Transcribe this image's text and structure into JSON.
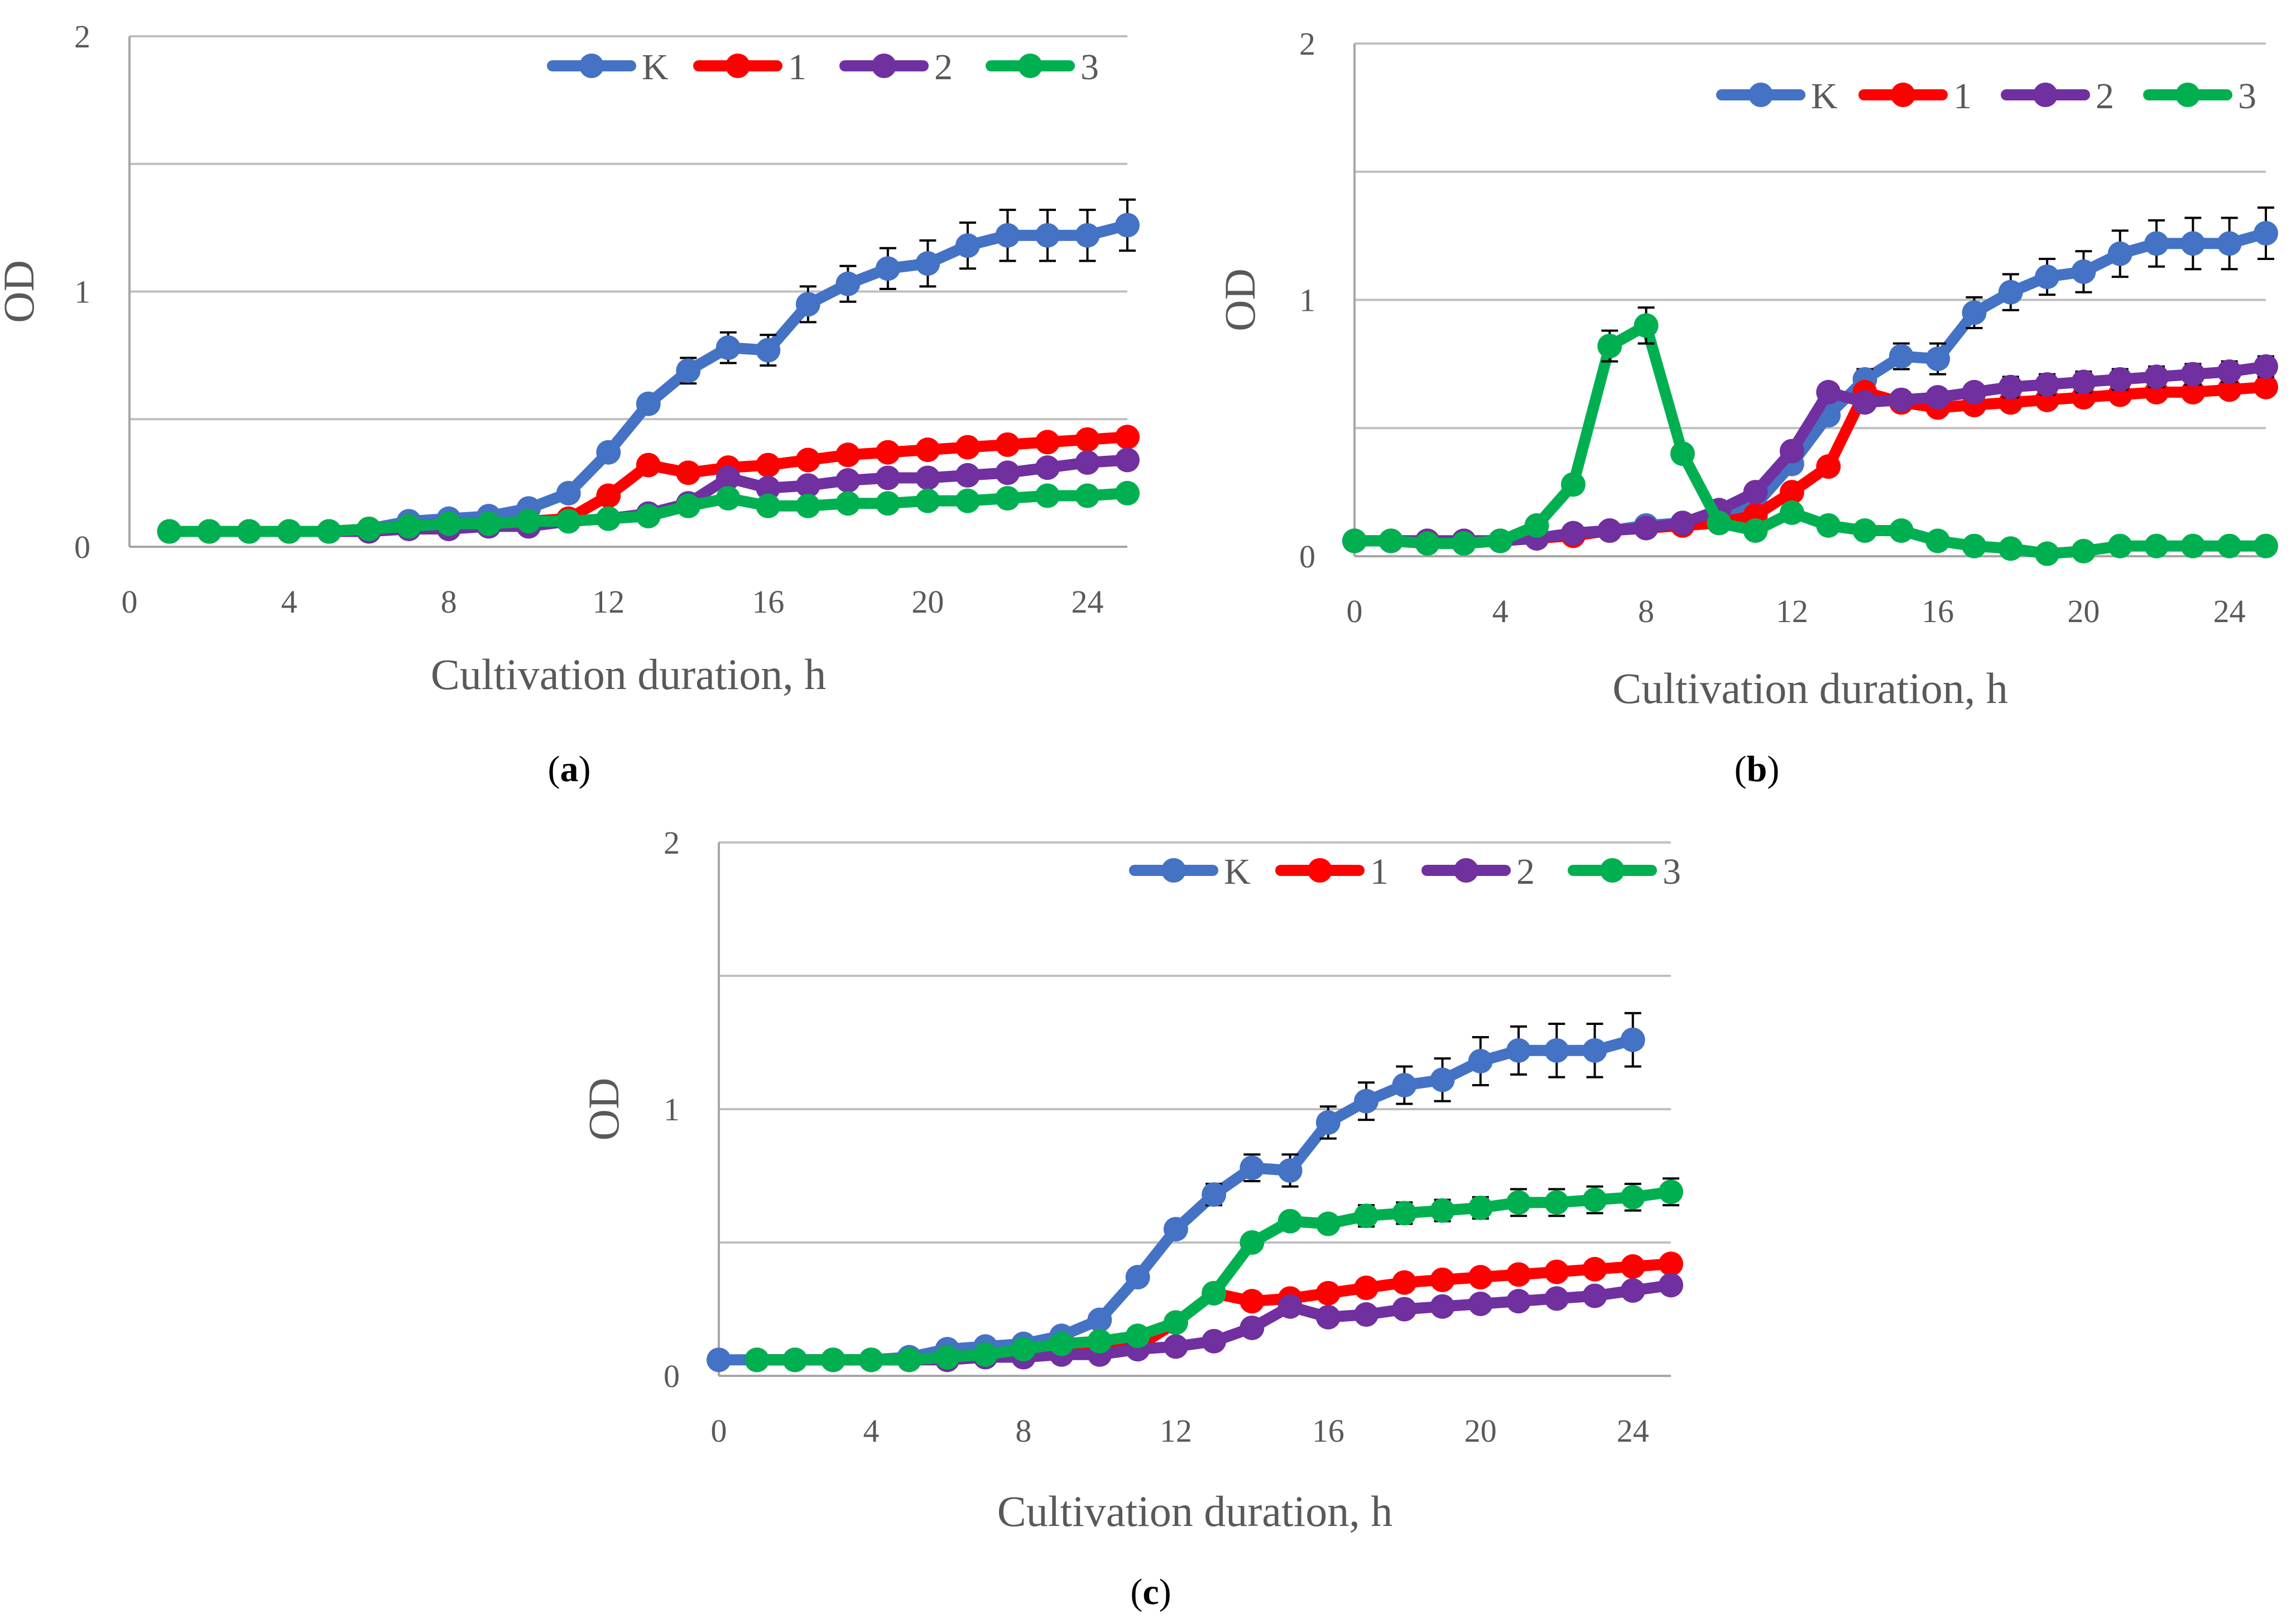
{
  "chart_data": [
    {
      "type": "line",
      "panel_label": "a",
      "xlabel": "Cultivation duration, h",
      "ylabel": "OD",
      "xlim": [
        0,
        25
      ],
      "ylim": [
        0,
        2
      ],
      "xticks": [
        0,
        4,
        8,
        12,
        16,
        20,
        24
      ],
      "yticks": [
        0,
        1,
        2
      ],
      "grid": true,
      "legend_position": "top-right",
      "x": [
        1,
        2,
        3,
        4,
        5,
        6,
        7,
        8,
        9,
        10,
        11,
        12,
        13,
        14,
        15,
        16,
        17,
        18,
        19,
        20,
        21,
        22,
        23,
        24,
        25
      ],
      "series": [
        {
          "name": "K",
          "color": "#4472c4",
          "values": [
            0.06,
            0.06,
            0.06,
            0.06,
            0.06,
            0.07,
            0.1,
            0.11,
            0.12,
            0.15,
            0.21,
            0.37,
            0.56,
            0.69,
            0.78,
            0.77,
            0.95,
            1.03,
            1.09,
            1.11,
            1.18,
            1.22,
            1.22,
            1.22,
            1.26
          ],
          "error": [
            0,
            0,
            0,
            0,
            0,
            0,
            0,
            0,
            0,
            0,
            0,
            0,
            0.03,
            0.05,
            0.06,
            0.06,
            0.07,
            0.07,
            0.08,
            0.09,
            0.09,
            0.1,
            0.1,
            0.1,
            0.1
          ]
        },
        {
          "name": "1",
          "color": "#ff0000",
          "values": [
            0.06,
            0.06,
            0.06,
            0.06,
            0.06,
            0.07,
            0.08,
            0.09,
            0.09,
            0.1,
            0.11,
            0.2,
            0.32,
            0.29,
            0.31,
            0.32,
            0.34,
            0.36,
            0.37,
            0.38,
            0.39,
            0.4,
            0.41,
            0.42,
            0.43
          ],
          "error": []
        },
        {
          "name": "2",
          "color": "#7030a0",
          "values": [
            0.06,
            0.06,
            0.06,
            0.06,
            0.06,
            0.06,
            0.07,
            0.07,
            0.08,
            0.08,
            0.1,
            0.11,
            0.13,
            0.17,
            0.27,
            0.23,
            0.24,
            0.26,
            0.27,
            0.27,
            0.28,
            0.29,
            0.31,
            0.33,
            0.34
          ],
          "error": []
        },
        {
          "name": "3",
          "color": "#00b050",
          "values": [
            0.06,
            0.06,
            0.06,
            0.06,
            0.06,
            0.07,
            0.08,
            0.09,
            0.09,
            0.1,
            0.1,
            0.11,
            0.12,
            0.16,
            0.19,
            0.16,
            0.16,
            0.17,
            0.17,
            0.18,
            0.18,
            0.19,
            0.2,
            0.2,
            0.21
          ],
          "error": []
        }
      ]
    },
    {
      "type": "line",
      "panel_label": "b",
      "xlabel": "Cultivation duration, h",
      "ylabel": "OD",
      "xlim": [
        0,
        25
      ],
      "ylim": [
        0,
        2
      ],
      "xticks": [
        0,
        4,
        8,
        12,
        16,
        20,
        24
      ],
      "yticks": [
        0,
        1,
        2
      ],
      "grid": true,
      "legend_position": "top-right",
      "x": [
        0,
        1,
        2,
        3,
        4,
        5,
        6,
        7,
        8,
        9,
        10,
        11,
        12,
        13,
        14,
        15,
        16,
        17,
        18,
        19,
        20,
        21,
        22,
        23,
        24,
        25
      ],
      "series": [
        {
          "name": "K",
          "color": "#4472c4",
          "values": [
            0.06,
            0.06,
            0.06,
            0.06,
            0.06,
            0.07,
            0.09,
            0.1,
            0.12,
            0.13,
            0.15,
            0.2,
            0.36,
            0.55,
            0.69,
            0.78,
            0.77,
            0.95,
            1.03,
            1.09,
            1.11,
            1.18,
            1.22,
            1.22,
            1.22,
            1.26
          ],
          "error": [
            0,
            0,
            0,
            0,
            0,
            0,
            0,
            0,
            0,
            0,
            0,
            0,
            0,
            0.03,
            0.04,
            0.05,
            0.06,
            0.06,
            0.07,
            0.07,
            0.08,
            0.09,
            0.09,
            0.1,
            0.1,
            0.1
          ]
        },
        {
          "name": "1",
          "color": "#ff0000",
          "values": [
            0.06,
            0.06,
            0.06,
            0.06,
            0.06,
            0.07,
            0.08,
            0.1,
            0.11,
            0.12,
            0.13,
            0.16,
            0.25,
            0.35,
            0.64,
            0.6,
            0.58,
            0.59,
            0.6,
            0.61,
            0.62,
            0.63,
            0.64,
            0.64,
            0.65,
            0.66
          ],
          "error": []
        },
        {
          "name": "2",
          "color": "#7030a0",
          "values": [
            0.06,
            0.06,
            0.06,
            0.06,
            0.06,
            0.07,
            0.09,
            0.1,
            0.11,
            0.13,
            0.18,
            0.25,
            0.41,
            0.64,
            0.6,
            0.61,
            0.62,
            0.64,
            0.66,
            0.67,
            0.68,
            0.69,
            0.7,
            0.71,
            0.72,
            0.74
          ],
          "error": [
            0,
            0,
            0,
            0,
            0,
            0,
            0,
            0,
            0,
            0,
            0,
            0,
            0,
            0,
            0,
            0,
            0.03,
            0.03,
            0.04,
            0.04,
            0.04,
            0.04,
            0.04,
            0.04,
            0.04,
            0.04
          ]
        },
        {
          "name": "3",
          "color": "#00b050",
          "values": [
            0.06,
            0.06,
            0.05,
            0.05,
            0.06,
            0.12,
            0.28,
            0.82,
            0.9,
            0.4,
            0.13,
            0.1,
            0.17,
            0.12,
            0.1,
            0.1,
            0.06,
            0.04,
            0.03,
            0.01,
            0.02,
            0.04,
            0.04,
            0.04,
            0.04,
            0.04
          ],
          "error": [
            0,
            0,
            0,
            0,
            0,
            0,
            0,
            0.06,
            0.07,
            0.03,
            0,
            0,
            0,
            0,
            0,
            0,
            0,
            0,
            0,
            0,
            0,
            0,
            0,
            0,
            0,
            0
          ]
        }
      ]
    },
    {
      "type": "line",
      "panel_label": "c",
      "xlabel": "Cultivation duration, h",
      "ylabel": "OD",
      "xlim": [
        0,
        25
      ],
      "ylim": [
        0,
        2
      ],
      "xticks": [
        0,
        4,
        8,
        12,
        16,
        20,
        24
      ],
      "yticks": [
        0,
        1,
        2
      ],
      "grid": true,
      "legend_position": "top-right",
      "x": [
        0,
        1,
        2,
        3,
        4,
        5,
        6,
        7,
        8,
        9,
        10,
        11,
        12,
        13,
        14,
        15,
        16,
        17,
        18,
        19,
        20,
        21,
        22,
        23,
        24,
        25
      ],
      "series": [
        {
          "name": "K",
          "color": "#4472c4",
          "values": [
            0.06,
            0.06,
            0.06,
            0.06,
            0.06,
            0.07,
            0.1,
            0.11,
            0.12,
            0.15,
            0.21,
            0.37,
            0.55,
            0.68,
            0.78,
            0.77,
            0.95,
            1.03,
            1.09,
            1.11,
            1.18,
            1.22,
            1.22,
            1.22,
            1.26,
            null
          ],
          "error": [
            0,
            0,
            0,
            0,
            0,
            0,
            0,
            0,
            0,
            0,
            0,
            0,
            0,
            0.04,
            0.05,
            0.06,
            0.06,
            0.07,
            0.07,
            0.08,
            0.09,
            0.09,
            0.1,
            0.1,
            0.1,
            0
          ]
        },
        {
          "name": "1",
          "color": "#ff0000",
          "values": [
            null,
            0.06,
            0.06,
            0.06,
            0.06,
            0.06,
            0.07,
            0.08,
            0.09,
            0.09,
            0.1,
            0.11,
            0.2,
            0.31,
            0.28,
            0.29,
            0.31,
            0.33,
            0.35,
            0.36,
            0.37,
            0.38,
            0.39,
            0.4,
            0.41,
            0.42
          ],
          "error": []
        },
        {
          "name": "2",
          "color": "#7030a0",
          "values": [
            null,
            0.06,
            0.06,
            0.06,
            0.06,
            0.06,
            0.06,
            0.07,
            0.07,
            0.08,
            0.08,
            0.1,
            0.11,
            0.13,
            0.18,
            0.26,
            0.22,
            0.23,
            0.25,
            0.26,
            0.27,
            0.28,
            0.29,
            0.3,
            0.32,
            0.34
          ],
          "error": []
        },
        {
          "name": "3",
          "color": "#00b050",
          "values": [
            null,
            0.06,
            0.06,
            0.06,
            0.06,
            0.06,
            0.07,
            0.08,
            0.1,
            0.12,
            0.13,
            0.15,
            0.2,
            0.31,
            0.5,
            0.58,
            0.57,
            0.6,
            0.61,
            0.62,
            0.63,
            0.65,
            0.65,
            0.66,
            0.67,
            0.69
          ],
          "error": [
            0,
            0,
            0,
            0,
            0,
            0,
            0,
            0,
            0,
            0,
            0,
            0,
            0,
            0,
            0.02,
            0.03,
            0.03,
            0.04,
            0.04,
            0.04,
            0.04,
            0.05,
            0.05,
            0.05,
            0.05,
            0.05
          ]
        }
      ]
    }
  ]
}
